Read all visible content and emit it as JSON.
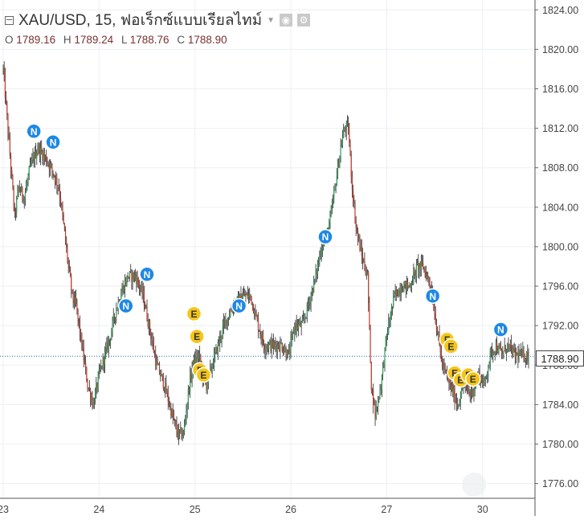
{
  "header": {
    "title": "XAU/USD, 15, ฟอเร็กซ์แบบเรียลไทม์",
    "ohlc": [
      {
        "label": "O",
        "value": "1789.16"
      },
      {
        "label": "H",
        "value": "1789.24"
      },
      {
        "label": "L",
        "value": "1788.76"
      },
      {
        "label": "C",
        "value": "1788.90"
      }
    ]
  },
  "last_price": "1788.90",
  "chart_data": {
    "type": "candlestick",
    "y_ticks": [
      "1824.00",
      "1820.00",
      "1816.00",
      "1812.00",
      "1808.00",
      "1804.00",
      "1800.00",
      "1796.00",
      "1792.00",
      "1788.00",
      "1784.00",
      "1780.00",
      "1776.00"
    ],
    "ylim": [
      1774.5,
      1825.0
    ],
    "x_ticks": [
      "23",
      "24",
      "25",
      "26",
      "27",
      "30"
    ],
    "x_tick_index": [
      0,
      100,
      200,
      300,
      400,
      500
    ],
    "x_range": [
      0,
      548
    ],
    "price_path": [
      [
        0,
        1818
      ],
      [
        4,
        1813
      ],
      [
        8,
        1808
      ],
      [
        12,
        1803
      ],
      [
        16,
        1806
      ],
      [
        22,
        1805
      ],
      [
        28,
        1808
      ],
      [
        36,
        1810
      ],
      [
        44,
        1809
      ],
      [
        50,
        1808
      ],
      [
        58,
        1806
      ],
      [
        62,
        1803
      ],
      [
        68,
        1798
      ],
      [
        72,
        1795
      ],
      [
        76,
        1794
      ],
      [
        82,
        1790
      ],
      [
        88,
        1786
      ],
      [
        94,
        1784
      ],
      [
        100,
        1787
      ],
      [
        106,
        1789
      ],
      [
        112,
        1791
      ],
      [
        116,
        1793
      ],
      [
        122,
        1795
      ],
      [
        130,
        1797
      ],
      [
        138,
        1797
      ],
      [
        146,
        1795
      ],
      [
        154,
        1791
      ],
      [
        160,
        1788
      ],
      [
        168,
        1786
      ],
      [
        176,
        1783
      ],
      [
        182,
        1781
      ],
      [
        188,
        1781
      ],
      [
        194,
        1786
      ],
      [
        198,
        1788
      ],
      [
        204,
        1789
      ],
      [
        208,
        1787
      ],
      [
        212,
        1786
      ],
      [
        218,
        1788
      ],
      [
        224,
        1790
      ],
      [
        230,
        1792
      ],
      [
        240,
        1794
      ],
      [
        250,
        1795
      ],
      [
        258,
        1795
      ],
      [
        266,
        1792
      ],
      [
        272,
        1790
      ],
      [
        280,
        1790
      ],
      [
        290,
        1790
      ],
      [
        298,
        1789
      ],
      [
        304,
        1792
      ],
      [
        312,
        1792
      ],
      [
        318,
        1794
      ],
      [
        326,
        1797
      ],
      [
        332,
        1800
      ],
      [
        340,
        1802
      ],
      [
        346,
        1806
      ],
      [
        352,
        1810
      ],
      [
        356,
        1812
      ],
      [
        360,
        1812
      ],
      [
        364,
        1806
      ],
      [
        368,
        1802
      ],
      [
        374,
        1799
      ],
      [
        380,
        1797
      ],
      [
        384,
        1786
      ],
      [
        388,
        1783
      ],
      [
        394,
        1786
      ],
      [
        400,
        1791
      ],
      [
        408,
        1795
      ],
      [
        416,
        1796
      ],
      [
        424,
        1796
      ],
      [
        432,
        1798
      ],
      [
        438,
        1798
      ],
      [
        446,
        1796
      ],
      [
        452,
        1792
      ],
      [
        458,
        1788
      ],
      [
        466,
        1786
      ],
      [
        474,
        1784
      ],
      [
        480,
        1786
      ],
      [
        488,
        1785
      ],
      [
        496,
        1787
      ],
      [
        502,
        1786
      ],
      [
        508,
        1789
      ],
      [
        514,
        1790
      ],
      [
        520,
        1789
      ],
      [
        526,
        1790
      ],
      [
        534,
        1789
      ],
      [
        540,
        1789
      ],
      [
        548,
        1788.9
      ]
    ],
    "markers": [
      {
        "type": "N",
        "index": 32,
        "price": 1811.7
      },
      {
        "type": "N",
        "index": 52,
        "price": 1810.6
      },
      {
        "type": "N",
        "index": 128,
        "price": 1794.0
      },
      {
        "type": "N",
        "index": 150,
        "price": 1797.2
      },
      {
        "type": "N",
        "index": 246,
        "price": 1794.0
      },
      {
        "type": "N",
        "index": 336,
        "price": 1801.0
      },
      {
        "type": "N",
        "index": 448,
        "price": 1795.0
      },
      {
        "type": "N",
        "index": 519,
        "price": 1791.6
      },
      {
        "type": "E",
        "index": 199,
        "price": 1793.2
      },
      {
        "type": "E",
        "index": 202,
        "price": 1790.9
      },
      {
        "type": "F",
        "index": 205,
        "price": 1787.5
      },
      {
        "type": "E",
        "index": 209,
        "price": 1787.0
      },
      {
        "type": "F",
        "index": 463,
        "price": 1790.6
      },
      {
        "type": "E",
        "index": 467,
        "price": 1789.9
      },
      {
        "type": "E",
        "index": 471,
        "price": 1787.2
      },
      {
        "type": "E",
        "index": 477,
        "price": 1786.5
      },
      {
        "type": "F",
        "index": 485,
        "price": 1787.0
      },
      {
        "type": "E",
        "index": 490,
        "price": 1786.6
      }
    ],
    "colors": {
      "up": "#2e9a5a",
      "down": "#c0392b",
      "wick": "#2a2a2a",
      "last_line": "#1f6fa6",
      "marker_n": "#1e88e5",
      "marker_e": "#f5c518"
    }
  }
}
